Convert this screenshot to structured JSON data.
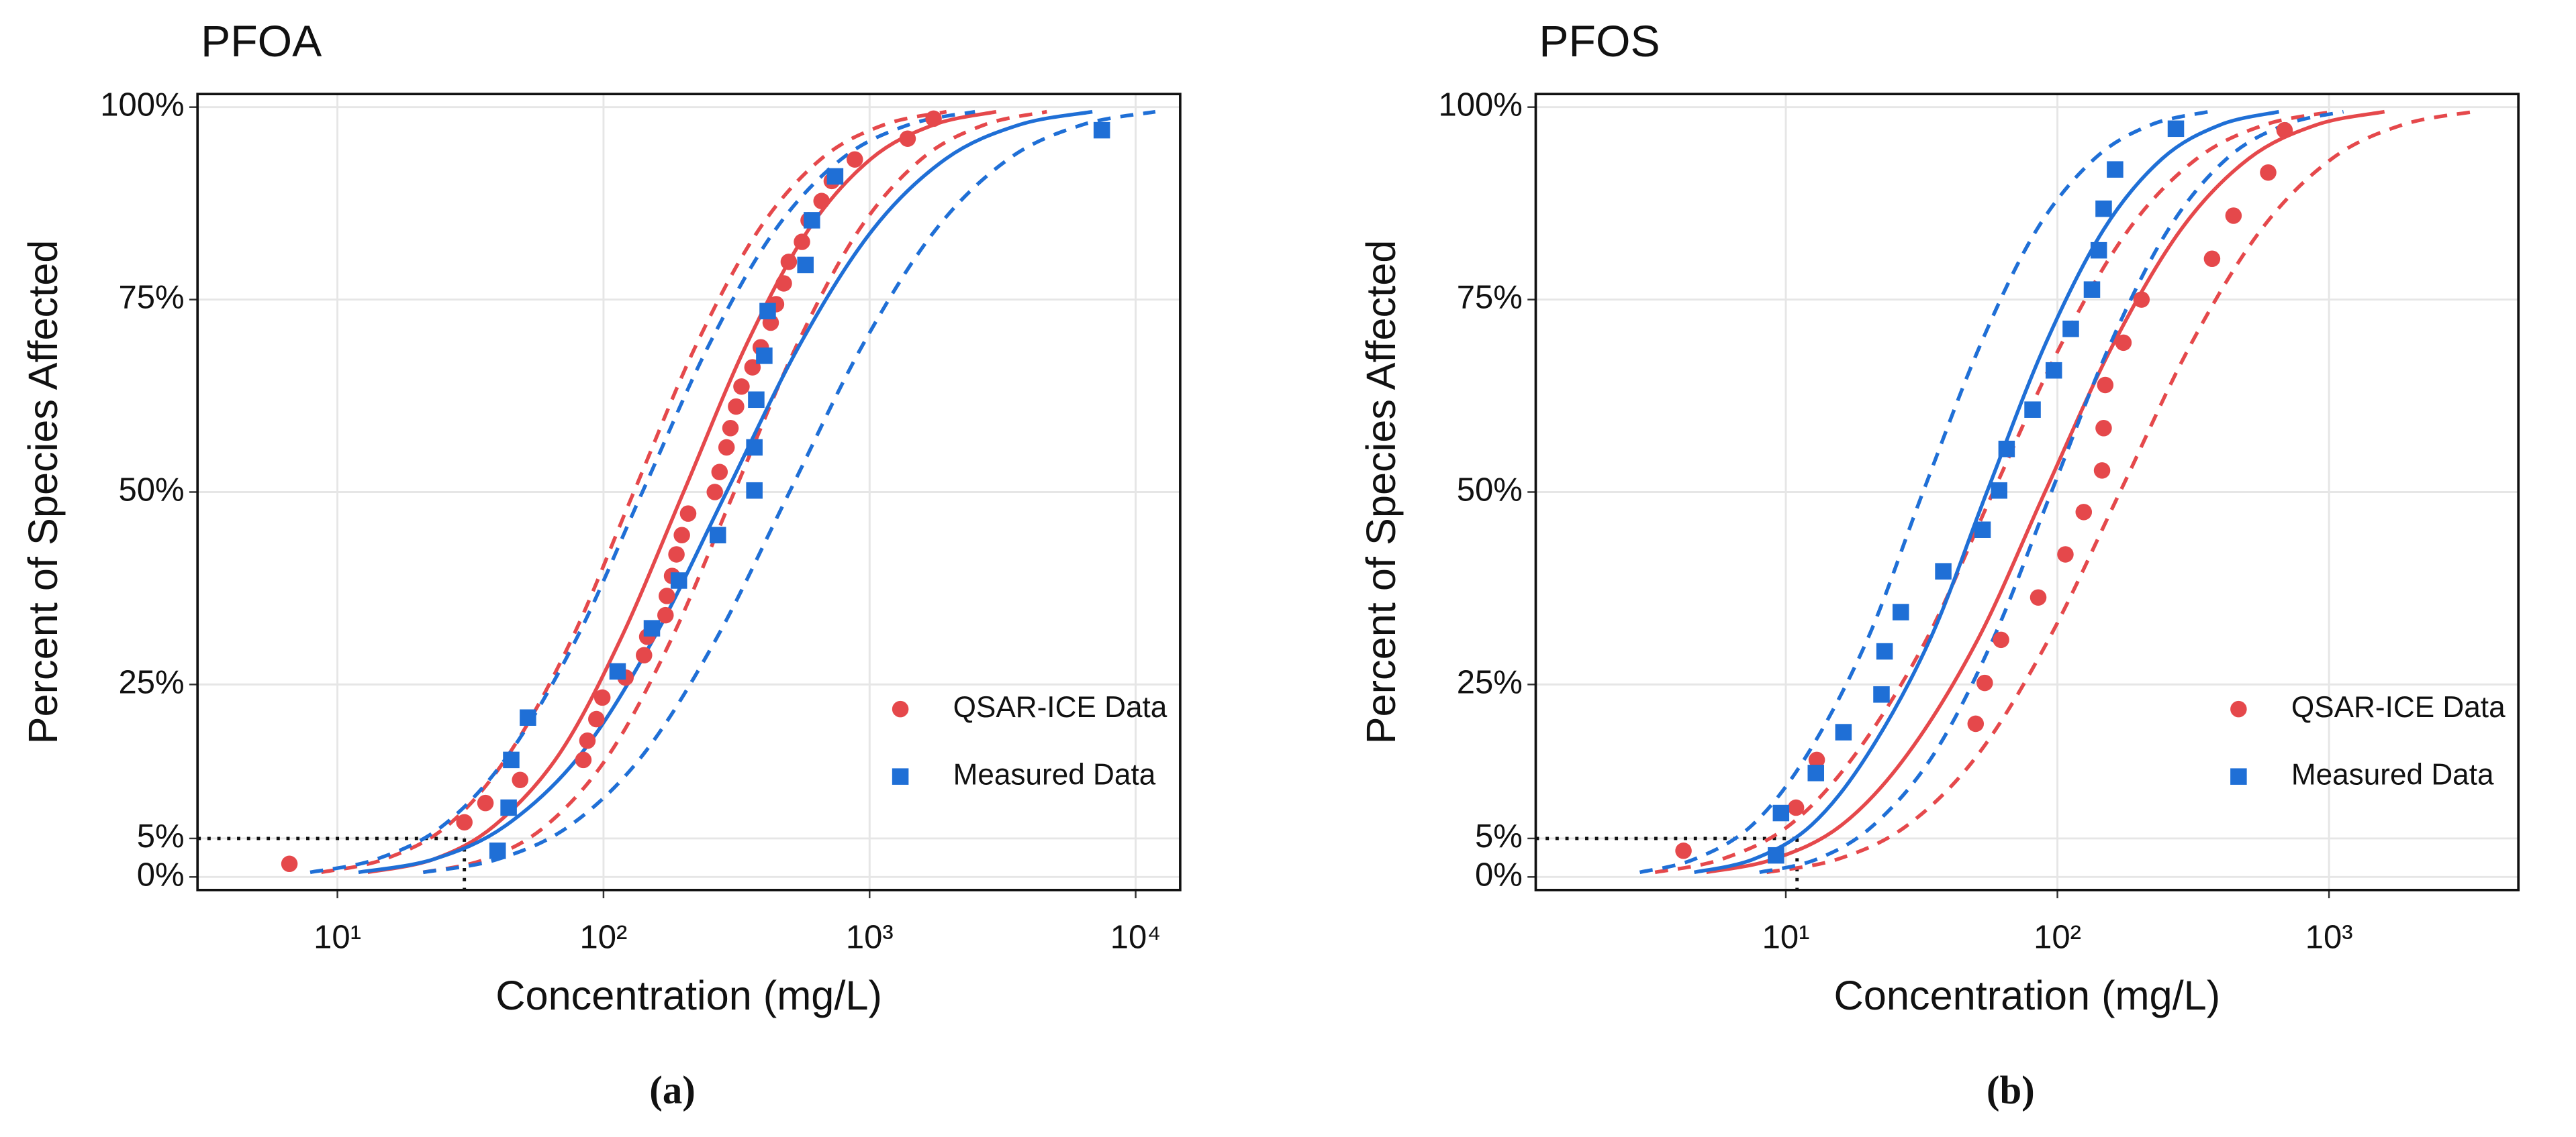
{
  "chart_data": [
    {
      "type": "scatter",
      "title": "PFOA",
      "label": "(a)",
      "xlabel": "Concentration (mg/L)",
      "ylabel": "Percent of Species Affected",
      "xscale": "log",
      "xlim": [
        2.98,
        14700
      ],
      "ylim": [
        -1.7,
        101.7
      ],
      "grid": true,
      "legend": "bottom-right",
      "xticks": [
        {
          "value": 10,
          "label": "10¹"
        },
        {
          "value": 100,
          "label": "10²"
        },
        {
          "value": 1000,
          "label": "10³"
        },
        {
          "value": 10000,
          "label": "10⁴"
        }
      ],
      "yticks": [
        {
          "value": 0,
          "label": "0%"
        },
        {
          "value": 5,
          "label": "5%"
        },
        {
          "value": 25,
          "label": "25%"
        },
        {
          "value": 50,
          "label": "50%"
        },
        {
          "value": 75,
          "label": "75%"
        },
        {
          "value": 100,
          "label": "100%"
        }
      ],
      "hc5": {
        "x": 30,
        "y": 5
      },
      "series": [
        {
          "name": "QSAR-ICE Data",
          "color": "#e5484b",
          "marker": "circle",
          "x": [
            6.6,
            30,
            36,
            48.6,
            84,
            87,
            94,
            99,
            121,
            142,
            146,
            171,
            173,
            181,
            188,
            197,
            208,
            262,
            273,
            290,
            300,
            315,
            330,
            363,
            390,
            425,
            445,
            476,
            497,
            557,
            590,
            660,
            721,
            880,
            1390,
            1740
          ],
          "values": [
            1.7,
            7.1,
            9.6,
            12.6,
            15.2,
            17.7,
            20.5,
            23.3,
            25.9,
            28.8,
            31.2,
            34,
            36.5,
            39.1,
            41.9,
            44.4,
            47.2,
            50,
            52.6,
            55.8,
            58.3,
            61.1,
            63.7,
            66.2,
            68.8,
            72,
            74.4,
            77.1,
            79.9,
            82.5,
            85.3,
            87.8,
            90.4,
            93.2,
            95.9,
            98.5
          ]
        },
        {
          "name": "Measured Data",
          "color": "#1f6fd6",
          "marker": "square",
          "x": [
            40,
            44,
            45,
            52,
            113,
            152,
            192,
            269,
            369,
            369,
            375,
            402,
            414,
            574,
            607,
            742,
            7460
          ],
          "values": [
            3.4,
            9,
            15.2,
            20.7,
            26.7,
            32.3,
            38.5,
            44.4,
            50.2,
            55.8,
            62,
            67.7,
            73.5,
            79.5,
            85.3,
            91,
            97
          ]
        },
        {
          "color": "#e5484b",
          "marker": "curve",
          "dash": false,
          "x": [
            13,
            23,
            39,
            68,
            116,
            200,
            344,
            590,
            1014,
            1742,
            2992
          ],
          "values": [
            0.6,
            2.3,
            6.7,
            15.9,
            30.9,
            50,
            69.1,
            84.1,
            93.3,
            97.7,
            99.4
          ]
        },
        {
          "color": "#e5484b",
          "marker": "curve",
          "dash": true,
          "x": [
            8.7,
            15,
            26,
            44,
            76,
            130,
            223,
            384,
            659,
            1132,
            1945
          ],
          "values": [
            0.6,
            2.3,
            6.7,
            15.9,
            30.9,
            50,
            69.1,
            84.1,
            93.3,
            97.7,
            99.4
          ]
        },
        {
          "color": "#e5484b",
          "marker": "curve",
          "dash": true,
          "x": [
            21,
            36,
            61,
            105,
            180,
            310,
            533,
            915,
            1572,
            2700,
            4638
          ],
          "values": [
            0.6,
            2.3,
            6.7,
            15.9,
            30.9,
            50,
            69.1,
            84.1,
            93.3,
            97.7,
            99.4
          ]
        },
        {
          "color": "#1f6fd6",
          "marker": "curve",
          "dash": false,
          "x": [
            12,
            23,
            43,
            82,
            154,
            290,
            546,
            1029,
            1938,
            3651,
            6876
          ],
          "values": [
            0.6,
            2.3,
            6.7,
            15.9,
            30.9,
            50,
            69.1,
            84.1,
            93.3,
            97.7,
            99.4
          ]
        },
        {
          "color": "#1f6fd6",
          "marker": "curve",
          "dash": true,
          "x": [
            7.9,
            14,
            25,
            44,
            79,
            140,
            249,
            443,
            787,
            1400,
            2489
          ],
          "values": [
            0.6,
            2.3,
            6.7,
            15.9,
            30.9,
            50,
            69.1,
            84.1,
            93.3,
            97.7,
            99.4
          ]
        },
        {
          "color": "#1f6fd6",
          "marker": "curve",
          "dash": true,
          "x": [
            21,
            40,
            75,
            141,
            265,
            500,
            942,
            1774,
            3342,
            6295,
            11855
          ],
          "values": [
            0.6,
            2.3,
            6.7,
            15.9,
            30.9,
            50,
            69.1,
            84.1,
            93.3,
            97.7,
            99.4
          ]
        }
      ]
    },
    {
      "type": "scatter",
      "title": "PFOS",
      "label": "(b)",
      "xlabel": "Concentration (mg/L)",
      "ylabel": "Percent of Species Affected",
      "xscale": "log",
      "xlim": [
        1.2,
        4980
      ],
      "ylim": [
        -1.7,
        101.7
      ],
      "grid": true,
      "legend": "bottom-right",
      "xticks": [
        {
          "value": 10,
          "label": "10¹"
        },
        {
          "value": 100,
          "label": "10²"
        },
        {
          "value": 1000,
          "label": "10³"
        }
      ],
      "yticks": [
        {
          "value": 0,
          "label": "0%"
        },
        {
          "value": 5,
          "label": "5%"
        },
        {
          "value": 25,
          "label": "25%"
        },
        {
          "value": 50,
          "label": "50%"
        },
        {
          "value": 75,
          "label": "75%"
        },
        {
          "value": 100,
          "label": "100%"
        }
      ],
      "hc5": {
        "x": 11,
        "y": 5
      },
      "series": [
        {
          "name": "QSAR-ICE Data",
          "color": "#e5484b",
          "marker": "circle",
          "x": [
            4.2,
            10.9,
            13,
            50,
            54,
            62,
            85,
            107,
            125,
            146,
            148,
            150,
            175,
            204,
            371,
            445,
            597,
            686
          ],
          "values": [
            3.4,
            9,
            15.2,
            19.9,
            25.2,
            30.8,
            36.3,
            41.9,
            47.4,
            52.8,
            58.3,
            63.9,
            69.4,
            75,
            80.3,
            85.9,
            91.5,
            97
          ]
        },
        {
          "name": "Measured Data",
          "color": "#1f6fd6",
          "marker": "square",
          "x": [
            9.2,
            9.6,
            12.9,
            16.3,
            22.5,
            23.1,
            26.5,
            38,
            53,
            61,
            65,
            81,
            97,
            112,
            134,
            142,
            148,
            163,
            273
          ],
          "values": [
            2.8,
            8.3,
            13.5,
            18.8,
            23.7,
            29.3,
            34.4,
            39.7,
            45.1,
            50.2,
            55.6,
            60.7,
            65.8,
            71.2,
            76.3,
            81.4,
            86.8,
            91.9,
            97.2
          ]
        },
        {
          "color": "#e5484b",
          "marker": "curve",
          "dash": false,
          "x": [
            5.1,
            9,
            16,
            28,
            51,
            90,
            160,
            285,
            506,
            900,
            1600
          ],
          "values": [
            0.6,
            2.3,
            6.7,
            15.9,
            30.9,
            50,
            69.1,
            84.1,
            93.3,
            97.7,
            99.4
          ]
        },
        {
          "color": "#e5484b",
          "marker": "curve",
          "dash": true,
          "x": [
            3.3,
            5.8,
            10.3,
            18,
            33,
            58,
            103,
            183,
            326,
            580,
            1031
          ],
          "values": [
            0.6,
            2.3,
            6.7,
            15.9,
            30.9,
            50,
            69.1,
            84.1,
            93.3,
            97.7,
            99.4
          ]
        },
        {
          "color": "#e5484b",
          "marker": "curve",
          "dash": true,
          "x": [
            8.5,
            15.5,
            28,
            51,
            93,
            170,
            309,
            563,
            1025,
            1863,
            3392
          ],
          "values": [
            0.6,
            2.3,
            6.7,
            15.9,
            30.9,
            50,
            69.1,
            84.1,
            93.3,
            97.7,
            99.4
          ]
        },
        {
          "color": "#1f6fd6",
          "marker": "curve",
          "dash": false,
          "x": [
            4.6,
            7.6,
            12.4,
            20,
            34,
            55,
            90,
            148,
            243,
            398,
            654
          ],
          "values": [
            0.6,
            2.3,
            6.7,
            15.9,
            30.9,
            50,
            69.1,
            84.1,
            93.3,
            97.7,
            99.4
          ]
        },
        {
          "color": "#1f6fd6",
          "marker": "curve",
          "dash": true,
          "x": [
            2.9,
            4.6,
            7.5,
            12,
            20,
            32,
            52,
            84,
            137,
            221,
            359
          ],
          "values": [
            0.6,
            2.3,
            6.7,
            15.9,
            30.9,
            50,
            69.1,
            84.1,
            93.3,
            97.7,
            99.4
          ]
        },
        {
          "color": "#1f6fd6",
          "marker": "curve",
          "dash": true,
          "x": [
            8,
            13,
            21,
            35,
            58,
            95,
            156,
            256,
            420,
            688,
            1130
          ],
          "values": [
            0.6,
            2.3,
            6.7,
            15.9,
            30.9,
            50,
            69.1,
            84.1,
            93.3,
            97.7,
            99.4
          ]
        }
      ]
    }
  ]
}
